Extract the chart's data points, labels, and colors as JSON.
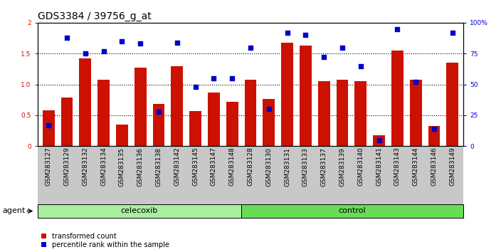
{
  "title": "GDS3384 / 39756_g_at",
  "samples": [
    "GSM283127",
    "GSM283129",
    "GSM283132",
    "GSM283134",
    "GSM283135",
    "GSM283136",
    "GSM283138",
    "GSM283142",
    "GSM283145",
    "GSM283147",
    "GSM283148",
    "GSM283128",
    "GSM283130",
    "GSM283131",
    "GSM283133",
    "GSM283137",
    "GSM283139",
    "GSM283140",
    "GSM283141",
    "GSM283143",
    "GSM283144",
    "GSM283146",
    "GSM283149"
  ],
  "transformed_count": [
    0.58,
    0.79,
    1.42,
    1.08,
    0.35,
    1.27,
    0.68,
    1.3,
    0.57,
    0.87,
    0.72,
    1.08,
    0.76,
    1.68,
    1.63,
    1.05,
    1.08,
    1.05,
    0.18,
    1.55,
    1.08,
    0.33,
    1.35
  ],
  "percentile_rank": [
    17,
    88,
    75,
    77,
    85,
    83,
    28,
    84,
    48,
    55,
    55,
    80,
    30,
    92,
    90,
    72,
    80,
    65,
    5,
    95,
    52,
    14,
    92
  ],
  "celecoxib_count": 11,
  "group_labels": [
    "celecoxib",
    "control"
  ],
  "ylim_left": [
    0,
    2
  ],
  "ylim_right": [
    0,
    100
  ],
  "yticks_left": [
    0,
    0.5,
    1.0,
    1.5,
    2.0
  ],
  "yticks_right": [
    0,
    25,
    50,
    75,
    100
  ],
  "bar_color": "#CC1100",
  "dot_color": "#0000CC",
  "background_color": "#FFFFFF",
  "tick_area_color": "#C8C8C8",
  "celecoxib_color": "#AAEEA0",
  "control_color": "#66DD55",
  "agent_label": "agent",
  "legend_transformed": "transformed count",
  "legend_percentile": "percentile rank within the sample",
  "bar_width": 0.65,
  "dotted_lines": [
    0.5,
    1.0,
    1.5
  ],
  "title_fontsize": 10,
  "tick_fontsize": 6.5,
  "label_fontsize": 8,
  "group_fontsize": 8
}
